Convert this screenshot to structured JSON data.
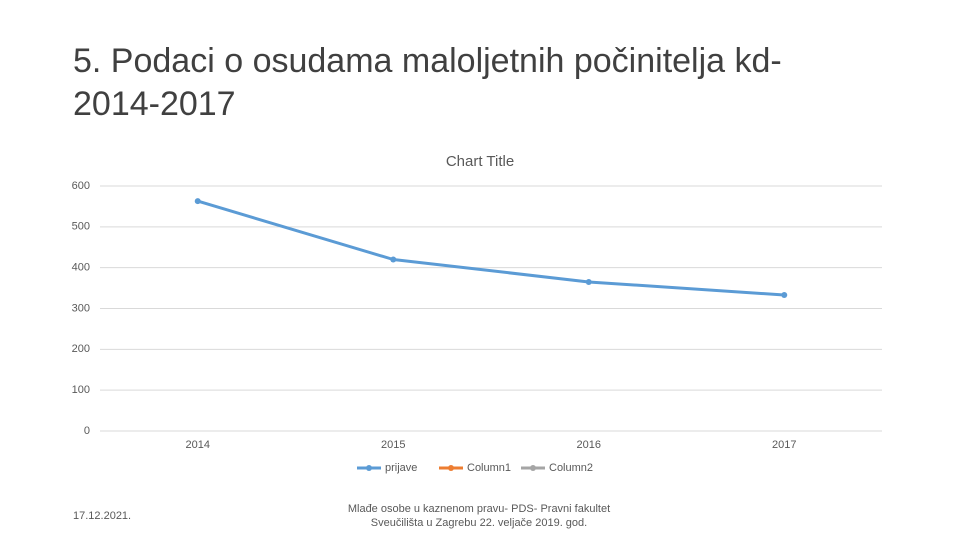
{
  "slide": {
    "title_lines": [
      "5. Podaci o osudama maloljetnih počinitelja kd-",
      "2014-2017"
    ],
    "date": "17.12.2021.",
    "footer_lines": [
      "Mlađe osobe u kaznenom pravu- PDS- Pravni fakultet",
      "Sveučilišta u Zagrebu 22. veljače 2019. god."
    ]
  },
  "chart_data": {
    "type": "line",
    "title": "Chart Title",
    "categories": [
      "2014",
      "2015",
      "2016",
      "2017"
    ],
    "series": [
      {
        "name": "prijave",
        "color": "#5b9bd5",
        "values": [
          563,
          420,
          365,
          333
        ]
      },
      {
        "name": "Column1",
        "color": "#ed7d31",
        "values": [
          null,
          null,
          null,
          null
        ]
      },
      {
        "name": "Column2",
        "color": "#a5a5a5",
        "values": [
          null,
          null,
          null,
          null
        ]
      }
    ],
    "ylim": [
      0,
      600
    ],
    "yticks": [
      0,
      100,
      200,
      300,
      400,
      500,
      600
    ],
    "grid": true,
    "legend": "bottom"
  }
}
